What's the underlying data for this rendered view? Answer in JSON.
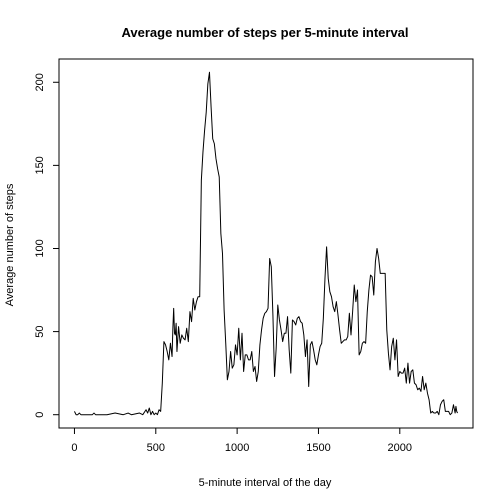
{
  "chart_data": {
    "type": "line",
    "title": "Average number of steps per 5-minute interval",
    "xlabel": "5-minute interval of the day",
    "ylabel": "Average number of steps",
    "xlim": [
      -95,
      2450
    ],
    "ylim": [
      -8,
      214
    ],
    "xticks": [
      0,
      500,
      1000,
      1500,
      2000
    ],
    "yticks": [
      0,
      50,
      100,
      150,
      200
    ],
    "grid": false,
    "legend": "none",
    "series": [
      {
        "name": "Average number of steps",
        "color": "#000000",
        "points": [
          [
            0,
            2
          ],
          [
            10,
            0
          ],
          [
            20,
            0
          ],
          [
            30,
            1
          ],
          [
            40,
            0
          ],
          [
            50,
            0
          ],
          [
            100,
            0
          ],
          [
            110,
            0
          ],
          [
            120,
            1
          ],
          [
            130,
            0
          ],
          [
            150,
            0
          ],
          [
            200,
            0
          ],
          [
            250,
            1
          ],
          [
            300,
            0
          ],
          [
            330,
            1
          ],
          [
            350,
            0
          ],
          [
            400,
            1
          ],
          [
            420,
            0
          ],
          [
            440,
            3
          ],
          [
            450,
            1
          ],
          [
            460,
            4
          ],
          [
            470,
            0
          ],
          [
            480,
            2
          ],
          [
            490,
            0
          ],
          [
            500,
            1
          ],
          [
            510,
            0
          ],
          [
            520,
            3
          ],
          [
            530,
            2
          ],
          [
            540,
            19
          ],
          [
            550,
            44
          ],
          [
            560,
            42
          ],
          [
            570,
            38
          ],
          [
            580,
            33
          ],
          [
            590,
            43
          ],
          [
            600,
            35
          ],
          [
            605,
            52
          ],
          [
            610,
            64
          ],
          [
            615,
            49
          ],
          [
            620,
            48
          ],
          [
            625,
            55
          ],
          [
            630,
            38
          ],
          [
            640,
            53
          ],
          [
            650,
            43
          ],
          [
            660,
            48
          ],
          [
            670,
            46
          ],
          [
            680,
            45
          ],
          [
            690,
            52
          ],
          [
            700,
            44
          ],
          [
            710,
            62
          ],
          [
            720,
            56
          ],
          [
            730,
            70
          ],
          [
            740,
            63
          ],
          [
            750,
            68
          ],
          [
            760,
            71
          ],
          [
            770,
            71
          ],
          [
            780,
            141
          ],
          [
            790,
            158
          ],
          [
            800,
            171
          ],
          [
            810,
            182
          ],
          [
            820,
            199
          ],
          [
            830,
            206
          ],
          [
            840,
            185
          ],
          [
            850,
            166
          ],
          [
            860,
            163
          ],
          [
            870,
            154
          ],
          [
            880,
            148
          ],
          [
            890,
            143
          ],
          [
            900,
            109
          ],
          [
            910,
            97
          ],
          [
            920,
            63
          ],
          [
            930,
            43
          ],
          [
            940,
            21
          ],
          [
            950,
            26
          ],
          [
            960,
            38
          ],
          [
            970,
            28
          ],
          [
            980,
            30
          ],
          [
            990,
            42
          ],
          [
            1000,
            36
          ],
          [
            1010,
            52
          ],
          [
            1020,
            33
          ],
          [
            1030,
            49
          ],
          [
            1040,
            26
          ],
          [
            1050,
            36
          ],
          [
            1060,
            36
          ],
          [
            1070,
            33
          ],
          [
            1080,
            33
          ],
          [
            1090,
            38
          ],
          [
            1100,
            26
          ],
          [
            1110,
            29
          ],
          [
            1120,
            20
          ],
          [
            1130,
            26
          ],
          [
            1140,
            42
          ],
          [
            1150,
            51
          ],
          [
            1160,
            58
          ],
          [
            1170,
            61
          ],
          [
            1180,
            62
          ],
          [
            1190,
            64
          ],
          [
            1200,
            94
          ],
          [
            1210,
            89
          ],
          [
            1220,
            60
          ],
          [
            1230,
            23
          ],
          [
            1240,
            40
          ],
          [
            1250,
            66
          ],
          [
            1260,
            57
          ],
          [
            1270,
            51
          ],
          [
            1280,
            44
          ],
          [
            1290,
            49
          ],
          [
            1300,
            49
          ],
          [
            1310,
            59
          ],
          [
            1320,
            39
          ],
          [
            1330,
            25
          ],
          [
            1340,
            57
          ],
          [
            1350,
            56
          ],
          [
            1360,
            54
          ],
          [
            1370,
            58
          ],
          [
            1380,
            59
          ],
          [
            1390,
            56
          ],
          [
            1400,
            55
          ],
          [
            1410,
            48
          ],
          [
            1420,
            35
          ],
          [
            1430,
            45
          ],
          [
            1440,
            17
          ],
          [
            1450,
            42
          ],
          [
            1460,
            44
          ],
          [
            1470,
            39
          ],
          [
            1480,
            33
          ],
          [
            1490,
            30
          ],
          [
            1500,
            36
          ],
          [
            1510,
            41
          ],
          [
            1520,
            43
          ],
          [
            1530,
            58
          ],
          [
            1540,
            82
          ],
          [
            1550,
            101
          ],
          [
            1560,
            82
          ],
          [
            1570,
            74
          ],
          [
            1580,
            71
          ],
          [
            1590,
            65
          ],
          [
            1600,
            62
          ],
          [
            1610,
            68
          ],
          [
            1620,
            60
          ],
          [
            1630,
            51
          ],
          [
            1640,
            43
          ],
          [
            1650,
            44
          ],
          [
            1660,
            45
          ],
          [
            1670,
            45
          ],
          [
            1680,
            47
          ],
          [
            1690,
            61
          ],
          [
            1700,
            48
          ],
          [
            1710,
            62
          ],
          [
            1720,
            78
          ],
          [
            1730,
            68
          ],
          [
            1740,
            75
          ],
          [
            1750,
            36
          ],
          [
            1760,
            38
          ],
          [
            1770,
            43
          ],
          [
            1780,
            44
          ],
          [
            1790,
            43
          ],
          [
            1800,
            62
          ],
          [
            1810,
            75
          ],
          [
            1820,
            84
          ],
          [
            1830,
            83
          ],
          [
            1840,
            72
          ],
          [
            1850,
            92
          ],
          [
            1860,
            100
          ],
          [
            1870,
            94
          ],
          [
            1880,
            85
          ],
          [
            1890,
            85
          ],
          [
            1900,
            85
          ],
          [
            1910,
            85
          ],
          [
            1920,
            51
          ],
          [
            1930,
            37
          ],
          [
            1940,
            27
          ],
          [
            1950,
            41
          ],
          [
            1960,
            46
          ],
          [
            1970,
            33
          ],
          [
            1980,
            45
          ],
          [
            1990,
            23
          ],
          [
            2000,
            26
          ],
          [
            2010,
            25
          ],
          [
            2020,
            25
          ],
          [
            2030,
            28
          ],
          [
            2040,
            19
          ],
          [
            2050,
            31
          ],
          [
            2060,
            19
          ],
          [
            2070,
            26
          ],
          [
            2080,
            27
          ],
          [
            2090,
            19
          ],
          [
            2100,
            18
          ],
          [
            2110,
            15
          ],
          [
            2120,
            16
          ],
          [
            2130,
            14
          ],
          [
            2140,
            23
          ],
          [
            2150,
            15
          ],
          [
            2160,
            19
          ],
          [
            2170,
            13
          ],
          [
            2180,
            9
          ],
          [
            2190,
            1
          ],
          [
            2200,
            2
          ],
          [
            2210,
            1
          ],
          [
            2220,
            1
          ],
          [
            2230,
            2
          ],
          [
            2240,
            0
          ],
          [
            2250,
            6
          ],
          [
            2260,
            8
          ],
          [
            2270,
            9
          ],
          [
            2280,
            2
          ],
          [
            2290,
            2
          ],
          [
            2300,
            2
          ],
          [
            2310,
            0
          ],
          [
            2320,
            1
          ],
          [
            2330,
            6
          ],
          [
            2340,
            1
          ],
          [
            2345,
            5
          ],
          [
            2350,
            2
          ],
          [
            2355,
            1
          ]
        ]
      }
    ]
  }
}
